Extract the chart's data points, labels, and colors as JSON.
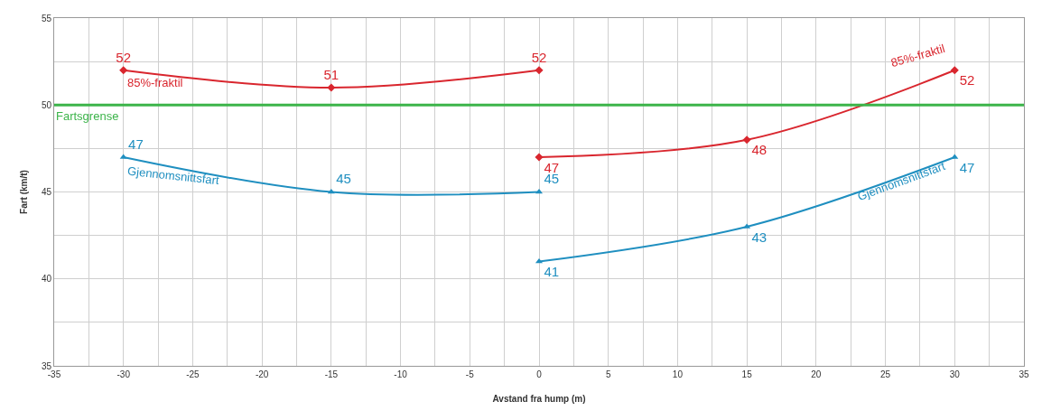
{
  "chart_data": {
    "type": "line",
    "xlabel": "Avstand fra hump (m)",
    "ylabel": "Fart (km/t)",
    "series": [
      {
        "name": "85%-fraktil",
        "color": "#d9262e",
        "marker": "diamond",
        "x": [
          -30,
          -15,
          0
        ],
        "values": [
          52,
          51,
          52
        ]
      },
      {
        "name": "85%-fraktil",
        "color": "#d9262e",
        "marker": "diamond",
        "x": [
          0,
          15,
          30
        ],
        "values": [
          47,
          48,
          52
        ]
      },
      {
        "name": "Gjennomsnittsfart",
        "color": "#1f8fc0",
        "marker": "triangle",
        "x": [
          -30,
          -15,
          0
        ],
        "values": [
          47,
          45,
          45
        ]
      },
      {
        "name": "Gjennomsnittsfart",
        "color": "#1f8fc0",
        "marker": "triangle",
        "x": [
          0,
          15,
          30
        ],
        "values": [
          41,
          43,
          47
        ]
      }
    ],
    "ref_lines": [
      {
        "axis": "y",
        "value": 50,
        "label": "Fartsgrense",
        "color": "#3cb44a"
      }
    ],
    "data_labels": true,
    "legend": false,
    "grid": true,
    "line_style": "solid",
    "xlim": [
      -35,
      35
    ],
    "xticks": [
      -35,
      {
        "value": -32.5,
        "label": null
      },
      -30,
      {
        "value": -27.5,
        "label": null
      },
      -25,
      {
        "value": -22.5,
        "label": null
      },
      -20,
      {
        "value": -17.5,
        "label": null
      },
      -15,
      {
        "value": -12.5,
        "label": null
      },
      -10,
      {
        "value": -7.5,
        "label": null
      },
      -5,
      {
        "value": -2.5,
        "label": null
      },
      0,
      {
        "value": 2.5,
        "label": null
      },
      5,
      {
        "value": 7.5,
        "label": null
      },
      10,
      {
        "value": 12.5,
        "label": null
      },
      15,
      {
        "value": 17.5,
        "label": null
      },
      20,
      {
        "value": 22.5,
        "label": null
      },
      25,
      {
        "value": 27.5,
        "label": null
      },
      30,
      {
        "value": 32.5,
        "label": null
      },
      35
    ],
    "ylim": [
      35,
      55
    ],
    "yticks": [
      35,
      {
        "value": 37.5,
        "label": null
      },
      40,
      {
        "value": 42.5,
        "label": null
      },
      45,
      {
        "value": 47.5,
        "label": null
      },
      50,
      {
        "value": 52.5,
        "label": null
      },
      55
    ]
  }
}
